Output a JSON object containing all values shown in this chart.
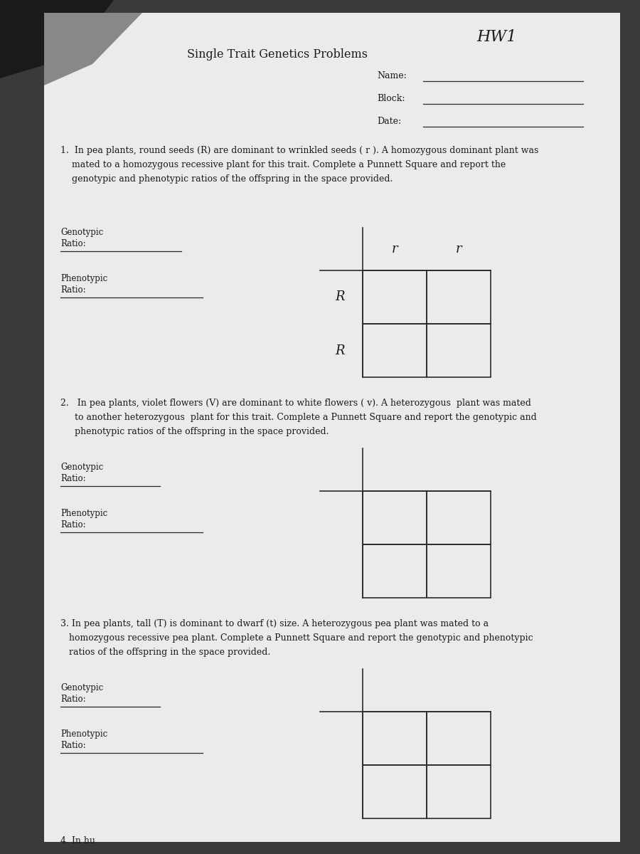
{
  "bg_color": "#2a2a2a",
  "paper_color": "#ececec",
  "paper_inner_color": "#e8e8e8",
  "title": "Single Trait Genetics Problems",
  "hw_label": "HW1",
  "name_label": "Name:",
  "block_label": "Block:",
  "date_label": "Date:",
  "q1_line1": "1.  In pea plants, round seeds (R) are dominant to wrinkled seeds ( r ). A homozygous dominant plant was",
  "q1_line2": "    mated to a homozygous recessive plant for this trait. Complete a Punnett Square and report the",
  "q1_line3": "    genotypic and phenotypic ratios of the offspring in the space provided.",
  "q2_line1": "2.   In pea plants, violet flowers (V) are dominant to white flowers ( v). A heterozygous  plant was mated",
  "q2_line2": "     to another heterozygous  plant for this trait. Complete a Punnett Square and report the genotypic and",
  "q2_line3": "     phenotypic ratios of the offspring in the space provided.",
  "q3_line1": "3. In pea plants, tall (T) is dominant to dwarf (t) size. A heterozygous pea plant was mated to a",
  "q3_line2": "   homozygous recessive pea plant. Complete a Punnett Square and report the genotypic and phenotypic",
  "q3_line3": "   ratios of the offspring in the space provided.",
  "q4_line1": "4. In hu",
  "genotypic_label": "Genotypic",
  "ratio_label": "Ratio:",
  "phenotypic_label": "Phenotypic",
  "punnett1_top": [
    "r",
    "r"
  ],
  "punnett1_left": [
    "R",
    "R"
  ],
  "text_color": "#1a1a1a",
  "line_color": "#2a2a2a",
  "font_size_title": 11.5,
  "font_size_body": 9.0,
  "font_size_label": 8.5,
  "font_size_punnett": 13
}
